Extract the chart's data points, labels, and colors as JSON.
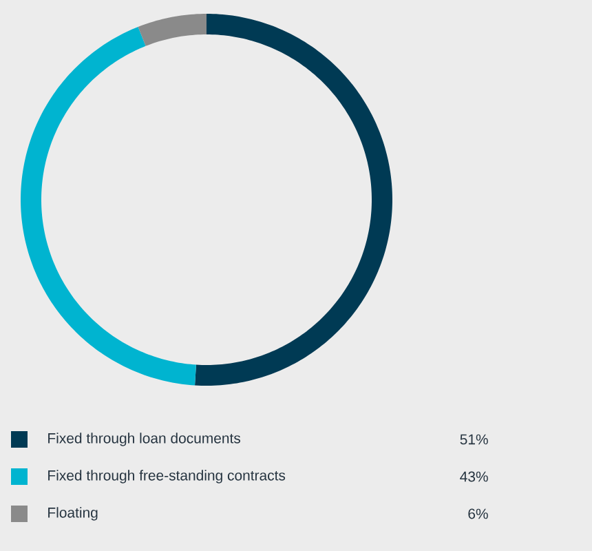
{
  "chart_data": {
    "type": "donut",
    "categories": [
      "Fixed through loan documents",
      "Fixed through free-standing contracts",
      "Floating"
    ],
    "values": [
      51,
      43,
      6
    ],
    "value_labels": [
      "51%",
      "43%",
      "6%"
    ],
    "colors": [
      "#003a54",
      "#00b4d0",
      "#8a8a8a"
    ],
    "legend": "bottom"
  }
}
